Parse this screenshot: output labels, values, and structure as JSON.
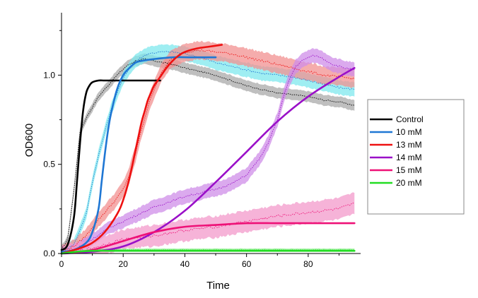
{
  "chart_data": {
    "type": "line",
    "title": "",
    "xlabel": "Time",
    "ylabel": "OD600",
    "xlim": [
      0,
      97
    ],
    "ylim": [
      0,
      1.35
    ],
    "xticks": [
      0,
      20,
      40,
      60,
      80
    ],
    "xtick_labels": [
      "0",
      "20",
      "40",
      "60",
      "80"
    ],
    "yticks": [
      0.0,
      0.5,
      1.0
    ],
    "ytick_labels": [
      "0.0",
      "0.5",
      "1.0"
    ],
    "grid": false,
    "legend": "right",
    "fit_series": [
      {
        "name": "Control",
        "color": "#000000",
        "x": [
          0,
          2,
          4,
          5,
          6,
          7,
          8,
          9,
          10,
          12,
          14,
          18,
          22,
          26,
          30,
          32
        ],
        "y": [
          0.02,
          0.05,
          0.2,
          0.4,
          0.62,
          0.8,
          0.9,
          0.94,
          0.96,
          0.97,
          0.97,
          0.97,
          0.97,
          0.97,
          0.97,
          0.97
        ]
      },
      {
        "name": "10 mM",
        "color": "#1f77d4",
        "x": [
          0,
          4,
          8,
          10,
          12,
          13,
          14,
          15,
          16,
          18,
          20,
          22,
          24,
          26,
          30,
          36,
          42,
          48,
          50
        ],
        "y": [
          0.01,
          0.02,
          0.06,
          0.12,
          0.25,
          0.4,
          0.55,
          0.68,
          0.78,
          0.92,
          1.0,
          1.04,
          1.07,
          1.08,
          1.09,
          1.1,
          1.1,
          1.1,
          1.1
        ]
      },
      {
        "name": "13 mM",
        "color": "#ee1111",
        "x": [
          0,
          6,
          10,
          14,
          18,
          20,
          22,
          24,
          25,
          26,
          27,
          28,
          29,
          30,
          32,
          34,
          36,
          38,
          40,
          44,
          48,
          52
        ],
        "y": [
          0.0,
          0.03,
          0.06,
          0.12,
          0.22,
          0.3,
          0.42,
          0.58,
          0.66,
          0.74,
          0.8,
          0.86,
          0.9,
          0.94,
          0.99,
          1.04,
          1.08,
          1.11,
          1.13,
          1.15,
          1.16,
          1.17
        ]
      },
      {
        "name": "14 mM",
        "color": "#9a10c8",
        "x": [
          0,
          10,
          20,
          30,
          40,
          50,
          60,
          70,
          80,
          90,
          95
        ],
        "y": [
          0.0,
          0.01,
          0.04,
          0.12,
          0.24,
          0.4,
          0.57,
          0.74,
          0.88,
          0.99,
          1.04
        ]
      },
      {
        "name": "15 mM",
        "color": "#ee1177",
        "x": [
          0,
          10,
          20,
          30,
          40,
          50,
          60,
          70,
          80,
          90,
          95
        ],
        "y": [
          0.0,
          0.02,
          0.07,
          0.12,
          0.15,
          0.16,
          0.17,
          0.17,
          0.17,
          0.17,
          0.17
        ]
      },
      {
        "name": "20 mM",
        "color": "#22dd22",
        "x": [
          0,
          5,
          10,
          20,
          40,
          60,
          80,
          95
        ],
        "y": [
          0.0,
          0.01,
          0.015,
          0.015,
          0.015,
          0.015,
          0.015,
          0.015
        ]
      }
    ],
    "observed_series": [
      {
        "name": "Control",
        "color": "#000000",
        "band_color": "#aaaaaa",
        "band_width": 0.03,
        "x": [
          0,
          2,
          4,
          6,
          8,
          10,
          12,
          15,
          18,
          21,
          24,
          27,
          30,
          33,
          36,
          40,
          45,
          50,
          55,
          60,
          65,
          70,
          75,
          80,
          85,
          90,
          95
        ],
        "y": [
          0.02,
          0.08,
          0.35,
          0.68,
          0.76,
          0.82,
          0.88,
          0.94,
          1.0,
          1.05,
          1.08,
          1.09,
          1.08,
          1.07,
          1.06,
          1.04,
          1.02,
          1.0,
          0.97,
          0.94,
          0.92,
          0.9,
          0.89,
          0.88,
          0.86,
          0.85,
          0.83
        ]
      },
      {
        "name": "10 mM",
        "color": "#1f77d4",
        "band_color": "#7fe8ee",
        "band_width": 0.04,
        "x": [
          0,
          4,
          8,
          10,
          12,
          14,
          16,
          18,
          20,
          22,
          24,
          28,
          32,
          36,
          40,
          45,
          50,
          55,
          60,
          65,
          70,
          75,
          80,
          85,
          90,
          95
        ],
        "y": [
          0.01,
          0.05,
          0.22,
          0.4,
          0.55,
          0.68,
          0.8,
          0.9,
          0.98,
          1.04,
          1.08,
          1.12,
          1.13,
          1.13,
          1.12,
          1.1,
          1.07,
          1.05,
          1.03,
          1.01,
          1.0,
          0.99,
          0.97,
          0.95,
          0.93,
          0.92
        ]
      },
      {
        "name": "13 mM",
        "color": "#ee1111",
        "band_color": "#f29090",
        "band_width": 0.05,
        "x": [
          0,
          4,
          8,
          10,
          12,
          14,
          16,
          18,
          20,
          22,
          24,
          26,
          28,
          30,
          32,
          35,
          40,
          45,
          50,
          55,
          60,
          65,
          70,
          75,
          80,
          85,
          90,
          95
        ],
        "y": [
          0.01,
          0.04,
          0.1,
          0.15,
          0.19,
          0.23,
          0.27,
          0.31,
          0.36,
          0.44,
          0.56,
          0.7,
          0.82,
          0.92,
          1.0,
          1.08,
          1.13,
          1.14,
          1.13,
          1.12,
          1.1,
          1.08,
          1.06,
          1.04,
          1.02,
          1.0,
          0.99,
          0.98
        ]
      },
      {
        "name": "14 mM",
        "color": "#9a10c8",
        "band_color": "#cf8ee8",
        "band_width": 0.04,
        "x": [
          0,
          5,
          10,
          15,
          20,
          25,
          30,
          35,
          40,
          45,
          50,
          55,
          60,
          65,
          67,
          70,
          72,
          74,
          76,
          78,
          80,
          82,
          84,
          86,
          88,
          90,
          92,
          95
        ],
        "y": [
          0.0,
          0.03,
          0.08,
          0.14,
          0.18,
          0.22,
          0.26,
          0.29,
          0.32,
          0.34,
          0.36,
          0.39,
          0.44,
          0.55,
          0.62,
          0.75,
          0.88,
          0.98,
          1.05,
          1.08,
          1.1,
          1.11,
          1.1,
          1.08,
          1.06,
          1.05,
          1.04,
          1.03
        ]
      },
      {
        "name": "15 mM",
        "color": "#ee1177",
        "band_color": "#f39acb",
        "band_width": 0.06,
        "x": [
          0,
          10,
          20,
          30,
          40,
          50,
          60,
          70,
          80,
          90,
          95
        ],
        "y": [
          0.0,
          0.03,
          0.08,
          0.1,
          0.13,
          0.15,
          0.18,
          0.21,
          0.23,
          0.25,
          0.28
        ]
      },
      {
        "name": "20 mM",
        "color": "#22dd22",
        "band_color": "#88ee88",
        "band_width": 0.008,
        "x": [
          0,
          10,
          20,
          40,
          60,
          80,
          95
        ],
        "y": [
          0.0,
          0.02,
          0.02,
          0.02,
          0.02,
          0.02,
          0.02
        ]
      }
    ],
    "legend_entries": [
      {
        "label": "Control",
        "color": "#000000"
      },
      {
        "label": "10 mM",
        "color": "#1f77d4"
      },
      {
        "label": "13 mM",
        "color": "#ee1111"
      },
      {
        "label": "14 mM",
        "color": "#9a10c8"
      },
      {
        "label": "15 mM",
        "color": "#ee1177"
      },
      {
        "label": "20 mM",
        "color": "#22dd22"
      }
    ]
  }
}
